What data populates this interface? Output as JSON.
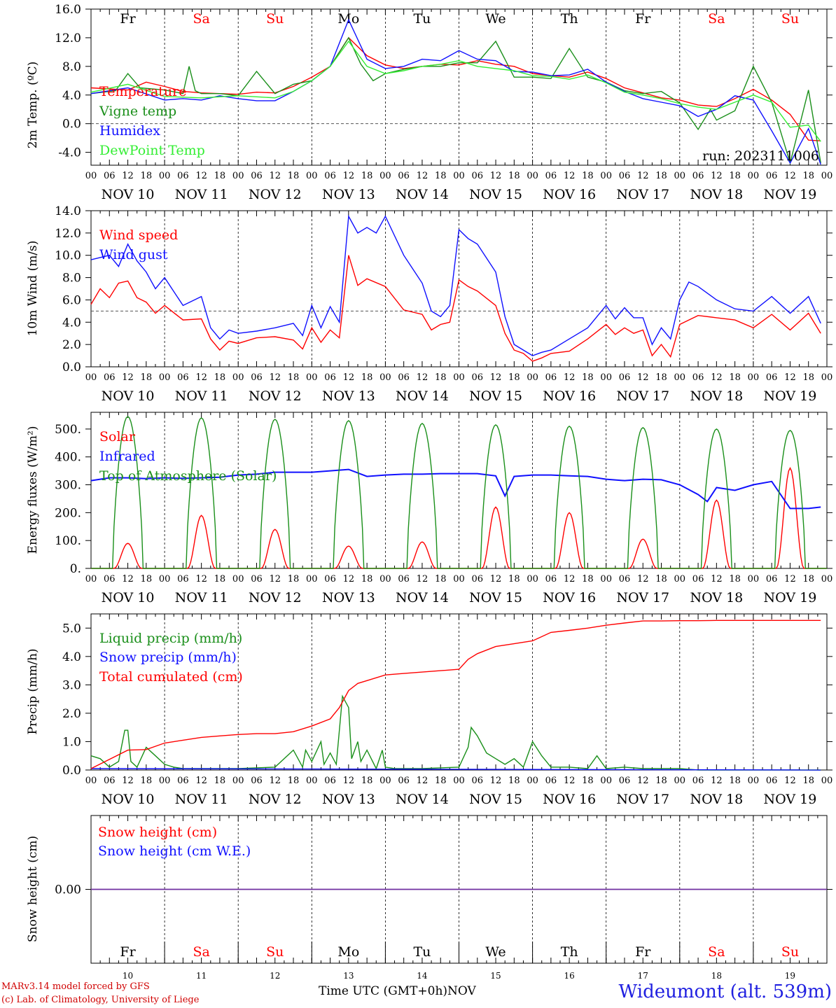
{
  "days": [
    "Fr",
    "Sa",
    "Su",
    "Mo",
    "Tu",
    "We",
    "Th",
    "Fr",
    "Sa",
    "Su"
  ],
  "weekend_days": [
    false,
    true,
    true,
    false,
    false,
    false,
    false,
    false,
    true,
    true
  ],
  "dates": [
    "NOV 10",
    "NOV 11",
    "NOV 12",
    "NOV 13",
    "NOV 14",
    "NOV 15",
    "NOV 16",
    "NOV 17",
    "NOV 18",
    "NOV 19"
  ],
  "day_numbers": [
    "10",
    "11",
    "12",
    "13",
    "14",
    "15",
    "16",
    "17",
    "18",
    "19"
  ],
  "hour_ticks": [
    "00",
    "06",
    "12",
    "18"
  ],
  "final_hour_tick": "00",
  "footer": {
    "credit_line1": "MARv3.14 model forced by GFS",
    "credit_line2": "(c) Lab. of Climatology, University of Liege",
    "xaxis_title": "Time UTC (GMT+0h)",
    "xaxis_month": "NOV",
    "station": "Wideumont (alt. 539m)"
  },
  "colors": {
    "red": "#ff0000",
    "green": "#1a8f1a",
    "blue": "#1010ff",
    "lightgreen": "#33ee33",
    "purple": "#7030a0"
  },
  "chart_data": [
    {
      "type": "line",
      "ylabel": "2m Temp. (ºC)",
      "ylim": [
        -5.8,
        16
      ],
      "yticks": [
        "16.0",
        "12.0",
        "8.0",
        "4.0",
        "0.0",
        "-4.0"
      ],
      "ytick_values": [
        16,
        12,
        8,
        4,
        0,
        -4
      ],
      "dashed_line": 0,
      "annotation": "run: 2023111006",
      "x_unit": "hours since NOV 10 00 UTC",
      "series": [
        {
          "name": "Temperature",
          "color": "red",
          "x": [
            0,
            12,
            18,
            24,
            30,
            36,
            42,
            48,
            54,
            60,
            66,
            72,
            78,
            84,
            90,
            96,
            102,
            108,
            114,
            120,
            126,
            132,
            138,
            144,
            150,
            156,
            162,
            168,
            174,
            180,
            186,
            192,
            198,
            204,
            210,
            216,
            222,
            228,
            234,
            238
          ],
          "values": [
            5.0,
            4.7,
            5.8,
            5.2,
            4.5,
            4.3,
            4.2,
            4.1,
            4.4,
            4.3,
            5.2,
            6.5,
            8.0,
            12.0,
            9.5,
            8.2,
            7.7,
            8.0,
            8.3,
            8.2,
            8.8,
            8.3,
            8.0,
            7.0,
            6.7,
            6.5,
            7.2,
            6.3,
            5.0,
            4.3,
            3.6,
            3.3,
            2.6,
            2.4,
            3.5,
            4.8,
            3.3,
            1.3,
            -2.3,
            -2.4
          ]
        },
        {
          "name": "Vigne temp",
          "color": "green",
          "x": [
            0,
            8,
            12,
            16,
            24,
            30,
            32,
            34,
            36,
            42,
            48,
            54,
            60,
            66,
            72,
            78,
            84,
            88,
            92,
            96,
            102,
            108,
            114,
            120,
            126,
            132,
            138,
            144,
            150,
            156,
            162,
            168,
            174,
            180,
            186,
            192,
            198,
            202,
            204,
            210,
            216,
            222,
            228,
            234,
            238
          ],
          "values": [
            4.2,
            4.6,
            7.0,
            5.0,
            4.7,
            4.2,
            8.0,
            4.6,
            4.2,
            4.2,
            3.9,
            7.3,
            4.2,
            5.5,
            6.0,
            8.0,
            12.0,
            8.3,
            6.0,
            7.0,
            7.6,
            8.0,
            8.0,
            8.5,
            8.5,
            11.5,
            6.5,
            6.5,
            6.3,
            10.5,
            6.5,
            5.8,
            4.6,
            4.2,
            4.5,
            2.9,
            -0.8,
            2.0,
            0.5,
            1.8,
            8.0,
            3.0,
            -5.5,
            4.7,
            -5.5
          ]
        },
        {
          "name": "Humidex",
          "color": "blue",
          "x": [
            0,
            12,
            24,
            30,
            36,
            42,
            48,
            54,
            60,
            66,
            72,
            78,
            84,
            90,
            96,
            102,
            108,
            114,
            120,
            126,
            132,
            138,
            144,
            150,
            156,
            162,
            168,
            174,
            180,
            186,
            192,
            198,
            204,
            210,
            216,
            222,
            228,
            234,
            238
          ],
          "values": [
            4.2,
            5.0,
            3.3,
            3.5,
            3.3,
            3.9,
            3.5,
            3.2,
            3.2,
            4.5,
            6.0,
            8.0,
            14.5,
            9.0,
            7.7,
            8.0,
            9.0,
            8.8,
            10.2,
            9.0,
            8.8,
            7.3,
            7.2,
            6.7,
            6.8,
            7.6,
            5.8,
            4.5,
            3.5,
            3.0,
            2.5,
            1.0,
            2.0,
            3.9,
            3.3,
            -1.0,
            -5.5,
            -0.7,
            -5.7
          ]
        },
        {
          "name": "DewPoint Temp",
          "color": "lightgreen",
          "x": [
            0,
            12,
            24,
            36,
            48,
            60,
            66,
            72,
            78,
            84,
            90,
            96,
            102,
            108,
            114,
            120,
            126,
            132,
            138,
            144,
            150,
            156,
            162,
            168,
            174,
            180,
            186,
            192,
            198,
            204,
            210,
            216,
            222,
            228,
            234,
            238
          ],
          "values": [
            4.4,
            5.5,
            3.8,
            3.6,
            3.9,
            3.6,
            4.5,
            6.0,
            8.0,
            11.5,
            8.0,
            7.0,
            7.4,
            8.0,
            8.3,
            8.8,
            8.0,
            7.7,
            7.4,
            6.7,
            6.6,
            6.2,
            6.8,
            5.7,
            4.4,
            4.0,
            3.5,
            2.8,
            2.3,
            2.0,
            3.0,
            4.0,
            3.0,
            -0.5,
            -0.2,
            -2.5
          ]
        }
      ]
    },
    {
      "type": "line",
      "ylabel": "10m Wind (m/s)",
      "ylim": [
        0,
        14
      ],
      "yticks": [
        "14.0",
        "12.0",
        "10.0",
        "8.0",
        "6.0",
        "4.0",
        "2.0",
        "0.0"
      ],
      "ytick_values": [
        14,
        12,
        10,
        8,
        6,
        4,
        2,
        0
      ],
      "dashed_line": 5,
      "series": [
        {
          "name": "Wind speed",
          "color": "red",
          "x": [
            0,
            3,
            6,
            9,
            12,
            15,
            18,
            21,
            24,
            30,
            36,
            39,
            42,
            45,
            48,
            54,
            60,
            66,
            69,
            72,
            75,
            78,
            81,
            84,
            87,
            90,
            96,
            102,
            108,
            111,
            114,
            117,
            120,
            123,
            126,
            132,
            135,
            138,
            141,
            144,
            147,
            150,
            156,
            162,
            168,
            171,
            174,
            177,
            180,
            183,
            186,
            189,
            192,
            198,
            204,
            210,
            216,
            222,
            228,
            234,
            238
          ],
          "values": [
            5.6,
            7.0,
            6.2,
            7.5,
            7.7,
            6.2,
            5.8,
            4.8,
            5.5,
            4.2,
            4.3,
            2.5,
            1.5,
            2.3,
            2.1,
            2.6,
            2.7,
            2.4,
            1.6,
            3.5,
            2.2,
            3.3,
            2.6,
            10.0,
            7.3,
            7.9,
            7.2,
            5.1,
            4.7,
            3.3,
            3.8,
            4.0,
            7.8,
            7.2,
            6.8,
            5.5,
            3.0,
            1.5,
            1.2,
            0.5,
            0.8,
            1.2,
            1.4,
            2.5,
            3.8,
            2.9,
            3.5,
            3.0,
            3.3,
            1.0,
            2.0,
            0.9,
            3.8,
            4.6,
            4.4,
            4.2,
            3.5,
            4.7,
            3.3,
            4.8,
            3.0
          ]
        },
        {
          "name": "Wind gust",
          "color": "blue",
          "x": [
            0,
            6,
            9,
            12,
            15,
            18,
            21,
            24,
            30,
            36,
            39,
            42,
            45,
            48,
            54,
            60,
            66,
            69,
            72,
            75,
            78,
            81,
            84,
            87,
            90,
            93,
            96,
            102,
            108,
            111,
            114,
            117,
            120,
            123,
            126,
            132,
            135,
            138,
            141,
            144,
            147,
            150,
            156,
            162,
            168,
            171,
            174,
            177,
            180,
            183,
            186,
            189,
            192,
            195,
            198,
            204,
            210,
            216,
            222,
            228,
            234,
            238
          ],
          "values": [
            9.6,
            10.0,
            9.0,
            11.0,
            9.5,
            8.5,
            7.0,
            8.0,
            5.5,
            6.3,
            3.5,
            2.5,
            3.3,
            3.0,
            3.2,
            3.5,
            3.9,
            2.8,
            5.5,
            3.5,
            5.4,
            4.0,
            13.5,
            12.0,
            12.5,
            12.0,
            13.5,
            10.0,
            7.5,
            5.0,
            4.5,
            5.5,
            12.3,
            11.5,
            11.0,
            8.5,
            4.5,
            2.0,
            1.5,
            1.0,
            1.3,
            1.5,
            2.5,
            3.5,
            5.5,
            4.3,
            5.3,
            4.4,
            4.4,
            2.0,
            3.5,
            2.5,
            6.0,
            7.6,
            7.2,
            6.0,
            5.2,
            5.0,
            6.3,
            4.8,
            6.3,
            3.9
          ]
        }
      ]
    },
    {
      "type": "line",
      "ylabel": "Energy fluxes (W/m²)",
      "ylim": [
        0,
        560
      ],
      "yticks": [
        "500.",
        "400.",
        "300.",
        "200.",
        "100.",
        "0."
      ],
      "ytick_values": [
        500,
        400,
        300,
        200,
        100,
        0
      ],
      "series": [
        {
          "name": "Solar",
          "color": "red",
          "peaks": [
            90,
            190,
            140,
            80,
            95,
            220,
            200,
            105,
            245,
            360
          ]
        },
        {
          "name": "Infrared",
          "color": "blue",
          "x": [
            0,
            6,
            12,
            18,
            24,
            30,
            36,
            42,
            48,
            54,
            60,
            66,
            72,
            78,
            84,
            90,
            96,
            102,
            108,
            114,
            120,
            126,
            132,
            135,
            138,
            144,
            150,
            156,
            162,
            168,
            174,
            180,
            186,
            192,
            198,
            201,
            204,
            210,
            216,
            222,
            228,
            234,
            238
          ],
          "values": [
            315,
            325,
            325,
            322,
            325,
            323,
            325,
            327,
            335,
            338,
            345,
            345,
            345,
            350,
            355,
            330,
            335,
            338,
            338,
            340,
            340,
            340,
            332,
            260,
            330,
            335,
            335,
            332,
            330,
            320,
            315,
            320,
            318,
            300,
            265,
            240,
            290,
            280,
            300,
            312,
            215,
            215,
            220
          ]
        },
        {
          "name": "Top of Atmosphere (Solar)",
          "color": "green",
          "peaks": [
            545,
            540,
            535,
            530,
            520,
            515,
            510,
            505,
            500,
            495
          ]
        }
      ]
    },
    {
      "type": "line",
      "ylabel": "Precip (mm/h)",
      "ylim": [
        0,
        5.5
      ],
      "yticks": [
        "5.0",
        "4.0",
        "3.0",
        "2.0",
        "1.0",
        "0.0"
      ],
      "ytick_values": [
        5,
        4,
        3,
        2,
        1,
        0
      ],
      "series": [
        {
          "name": "Liquid precip (mm/h)",
          "color": "green",
          "x": [
            0,
            3,
            6,
            9,
            11,
            12,
            13,
            15,
            18,
            21,
            24,
            27,
            30,
            36,
            48,
            60,
            66,
            69,
            70,
            72,
            75,
            76,
            78,
            80,
            82,
            84,
            85,
            87,
            88,
            90,
            93,
            95,
            96,
            99,
            102,
            108,
            120,
            123,
            124,
            126,
            129,
            132,
            135,
            138,
            141,
            144,
            147,
            150,
            156,
            162,
            165,
            168,
            174,
            180,
            186,
            192,
            198,
            204,
            238
          ],
          "values": [
            0.5,
            0.4,
            0.1,
            0.3,
            1.4,
            1.4,
            0.3,
            0.1,
            0.8,
            0.5,
            0.2,
            0.1,
            0.05,
            0.05,
            0.05,
            0.1,
            0.7,
            0.1,
            0.7,
            0.3,
            1.0,
            0.2,
            0.6,
            0.2,
            2.6,
            2.2,
            0.4,
            1.0,
            0.3,
            0.7,
            0.05,
            0.7,
            0.1,
            0.05,
            0.05,
            0.05,
            0.1,
            0.8,
            1.5,
            1.2,
            0.6,
            0.4,
            0.2,
            0.4,
            0.1,
            1.0,
            0.5,
            0.1,
            0.1,
            0.05,
            0.5,
            0.05,
            0.1,
            0.05,
            0.05,
            0.05,
            0.0,
            0.0,
            0.0
          ]
        },
        {
          "name": "Snow precip (mm/h)",
          "color": "blue",
          "x": [
            0,
            238
          ],
          "values": [
            0.05,
            0.0
          ]
        },
        {
          "name": "Total cumulated (cm)",
          "color": "red",
          "x": [
            0,
            12,
            18,
            24,
            30,
            36,
            42,
            48,
            54,
            60,
            66,
            72,
            78,
            81,
            84,
            87,
            90,
            96,
            102,
            108,
            114,
            120,
            123,
            126,
            132,
            138,
            144,
            150,
            156,
            162,
            168,
            174,
            180,
            186,
            192,
            198,
            204,
            210,
            216,
            222,
            228,
            234,
            238
          ],
          "values": [
            0.05,
            0.7,
            0.72,
            0.95,
            1.05,
            1.15,
            1.2,
            1.25,
            1.28,
            1.28,
            1.35,
            1.55,
            1.8,
            2.2,
            2.8,
            3.05,
            3.15,
            3.35,
            3.4,
            3.45,
            3.5,
            3.55,
            3.9,
            4.1,
            4.35,
            4.45,
            4.55,
            4.85,
            4.92,
            5.0,
            5.1,
            5.18,
            5.25,
            5.25,
            5.26,
            5.26,
            5.27,
            5.27,
            5.27,
            5.27,
            5.27,
            5.27,
            5.27
          ]
        }
      ]
    },
    {
      "type": "line",
      "ylabel": "Snow height (cm)",
      "ylim": [
        -1,
        1
      ],
      "yticks": [
        "0.00"
      ],
      "ytick_values": [
        0
      ],
      "series": [
        {
          "name": "Snow height (cm)",
          "color": "red",
          "x": [
            0,
            240
          ],
          "values": [
            0,
            0
          ]
        },
        {
          "name": "Snow height (cm W.E.)",
          "color": "blue",
          "x": [
            0,
            240
          ],
          "values": [
            0,
            0
          ]
        }
      ]
    }
  ]
}
